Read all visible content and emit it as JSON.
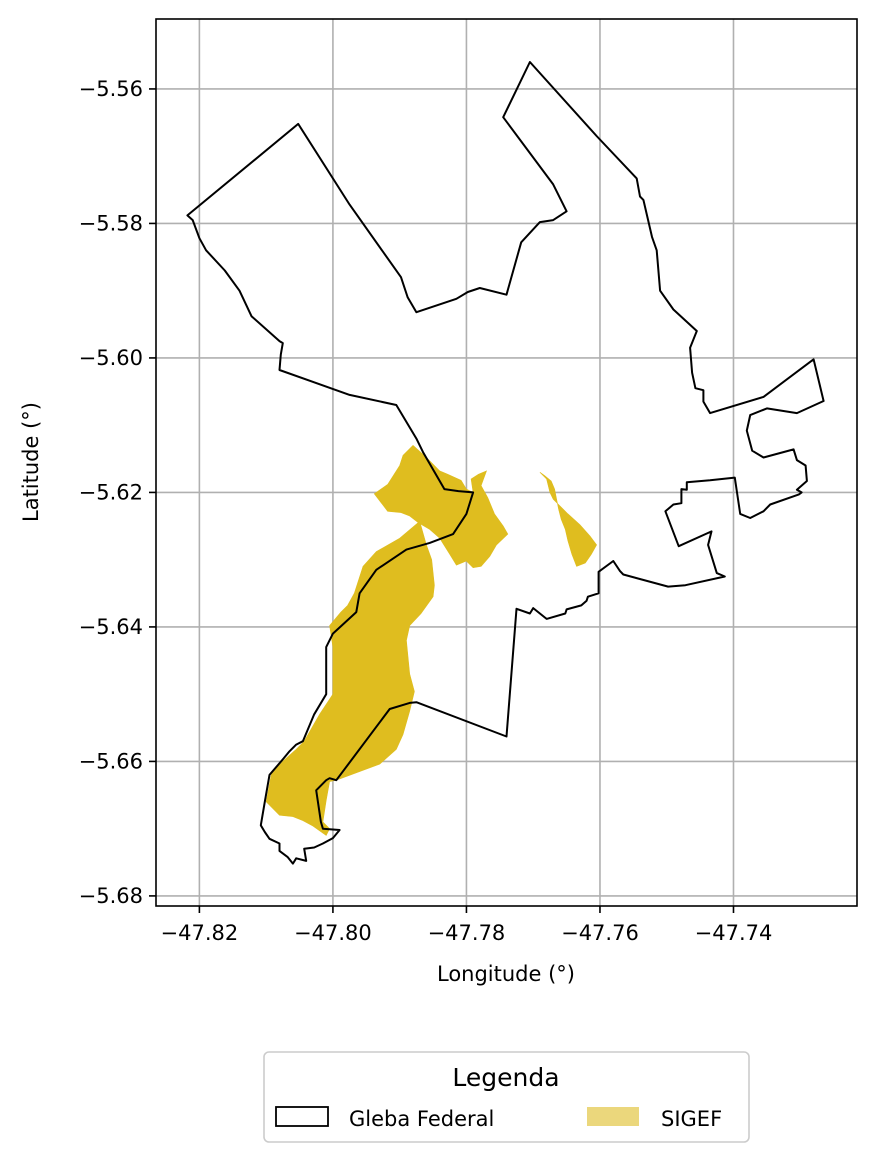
{
  "chart_data": {
    "type": "map",
    "xlabel": "Longitude (°)",
    "ylabel": "Latitude (°)",
    "xlim": [
      -47.8265,
      -47.7215
    ],
    "ylim": [
      -5.6815,
      -5.5496
    ],
    "x_ticks": [
      -47.82,
      -47.8,
      -47.78,
      -47.76,
      -47.74
    ],
    "x_tick_labels": [
      "−47.82",
      "−47.80",
      "−47.78",
      "−47.76",
      "−47.74"
    ],
    "y_ticks": [
      -5.56,
      -5.58,
      -5.6,
      -5.62,
      -5.64,
      -5.66,
      -5.68
    ],
    "y_tick_labels": [
      "−5.56",
      "−5.58",
      "−5.60",
      "−5.62",
      "−5.64",
      "−5.66",
      "−5.68"
    ],
    "grid": true,
    "legend": {
      "title": "Legenda",
      "placement": "bottom-center",
      "entries": [
        {
          "label": "Gleba Federal",
          "style": "outline",
          "color": "#000000"
        },
        {
          "label": "SIGEF",
          "style": "fill",
          "color": "#ebd77c"
        }
      ]
    },
    "layers": {
      "gleba_federal": {
        "edge_color": "#000000",
        "coordinates": [
          [
            -47.8218,
            -5.5788
          ],
          [
            -47.8052,
            -5.5652
          ],
          [
            -47.7975,
            -5.5772
          ],
          [
            -47.7898,
            -5.588
          ],
          [
            -47.7888,
            -5.591
          ],
          [
            -47.7875,
            -5.5932
          ],
          [
            -47.7815,
            -5.5912
          ],
          [
            -47.7798,
            -5.5902
          ],
          [
            -47.778,
            -5.5896
          ],
          [
            -47.774,
            -5.5906
          ],
          [
            -47.7718,
            -5.5828
          ],
          [
            -47.769,
            -5.5798
          ],
          [
            -47.767,
            -5.5795
          ],
          [
            -47.765,
            -5.5782
          ],
          [
            -47.767,
            -5.5742
          ],
          [
            -47.7745,
            -5.5642
          ],
          [
            -47.7705,
            -5.556
          ],
          [
            -47.7605,
            -5.567
          ],
          [
            -47.7545,
            -5.5733
          ],
          [
            -47.754,
            -5.576
          ],
          [
            -47.7535,
            -5.5765
          ],
          [
            -47.7522,
            -5.582
          ],
          [
            -47.7515,
            -5.584
          ],
          [
            -47.751,
            -5.59
          ],
          [
            -47.749,
            -5.5928
          ],
          [
            -47.7455,
            -5.596
          ],
          [
            -47.7465,
            -5.5985
          ],
          [
            -47.7462,
            -5.6022
          ],
          [
            -47.7457,
            -5.6045
          ],
          [
            -47.7445,
            -5.6048
          ],
          [
            -47.7445,
            -5.6065
          ],
          [
            -47.7435,
            -5.6082
          ],
          [
            -47.7355,
            -5.6058
          ],
          [
            -47.728,
            -5.6002
          ],
          [
            -47.7265,
            -5.6064
          ],
          [
            -47.7305,
            -5.6082
          ],
          [
            -47.735,
            -5.6075
          ],
          [
            -47.7375,
            -5.6085
          ],
          [
            -47.738,
            -5.6108
          ],
          [
            -47.7372,
            -5.6138
          ],
          [
            -47.7355,
            -5.6148
          ],
          [
            -47.731,
            -5.6136
          ],
          [
            -47.7305,
            -5.6152
          ],
          [
            -47.7292,
            -5.616
          ],
          [
            -47.729,
            -5.6183
          ],
          [
            -47.7305,
            -5.6196
          ],
          [
            -47.7298,
            -5.62
          ],
          [
            -47.7302,
            -5.6203
          ],
          [
            -47.7345,
            -5.6218
          ],
          [
            -47.7355,
            -5.6228
          ],
          [
            -47.7375,
            -5.6238
          ],
          [
            -47.739,
            -5.6232
          ],
          [
            -47.7398,
            -5.6178
          ],
          [
            -47.7435,
            -5.6182
          ],
          [
            -47.747,
            -5.6185
          ],
          [
            -47.747,
            -5.6196
          ],
          [
            -47.7478,
            -5.6195
          ],
          [
            -47.7478,
            -5.6216
          ],
          [
            -47.749,
            -5.6218
          ],
          [
            -47.7502,
            -5.6228
          ],
          [
            -47.7482,
            -5.628
          ],
          [
            -47.7433,
            -5.6258
          ],
          [
            -47.7438,
            -5.6278
          ],
          [
            -47.7425,
            -5.632
          ],
          [
            -47.7413,
            -5.6325
          ],
          [
            -47.7472,
            -5.6338
          ],
          [
            -47.7498,
            -5.634
          ],
          [
            -47.7565,
            -5.6322
          ],
          [
            -47.757,
            -5.6317
          ],
          [
            -47.758,
            -5.6302
          ],
          [
            -47.7602,
            -5.6318
          ],
          [
            -47.7602,
            -5.635
          ],
          [
            -47.7618,
            -5.6355
          ],
          [
            -47.762,
            -5.6361
          ],
          [
            -47.7628,
            -5.6368
          ],
          [
            -47.765,
            -5.6374
          ],
          [
            -47.7652,
            -5.638
          ],
          [
            -47.768,
            -5.6388
          ],
          [
            -47.77,
            -5.6372
          ],
          [
            -47.7705,
            -5.638
          ],
          [
            -47.7725,
            -5.6373
          ],
          [
            -47.774,
            -5.6563
          ],
          [
            -47.7875,
            -5.6512
          ],
          [
            -47.7885,
            -5.6513
          ],
          [
            -47.7915,
            -5.6522
          ],
          [
            -47.7995,
            -5.6628
          ],
          [
            -47.8005,
            -5.6625
          ],
          [
            -47.801,
            -5.6628
          ],
          [
            -47.8025,
            -5.6643
          ],
          [
            -47.8018,
            -5.669
          ],
          [
            -47.8015,
            -5.67
          ],
          [
            -47.799,
            -5.6702
          ],
          [
            -47.8,
            -5.6714
          ],
          [
            -47.8015,
            -5.6722
          ],
          [
            -47.8028,
            -5.6728
          ],
          [
            -47.8043,
            -5.673
          ],
          [
            -47.804,
            -5.6748
          ],
          [
            -47.8055,
            -5.6744
          ],
          [
            -47.806,
            -5.6752
          ],
          [
            -47.8068,
            -5.6742
          ],
          [
            -47.808,
            -5.6733
          ],
          [
            -47.808,
            -5.6722
          ],
          [
            -47.8095,
            -5.6715
          ],
          [
            -47.8102,
            -5.6705
          ],
          [
            -47.8108,
            -5.6695
          ],
          [
            -47.8102,
            -5.666
          ],
          [
            -47.8095,
            -5.662
          ],
          [
            -47.8075,
            -5.6597
          ],
          [
            -47.8065,
            -5.6585
          ],
          [
            -47.8055,
            -5.6575
          ],
          [
            -47.8045,
            -5.657
          ],
          [
            -47.8028,
            -5.653
          ],
          [
            -47.801,
            -5.65
          ],
          [
            -47.801,
            -5.643
          ],
          [
            -47.8,
            -5.641
          ],
          [
            -47.7965,
            -5.6378
          ],
          [
            -47.796,
            -5.635
          ],
          [
            -47.7935,
            -5.6315
          ],
          [
            -47.789,
            -5.6285
          ],
          [
            -47.7855,
            -5.6275
          ],
          [
            -47.782,
            -5.6262
          ],
          [
            -47.78,
            -5.6232
          ],
          [
            -47.779,
            -5.62
          ],
          [
            -47.7812,
            -5.6198
          ],
          [
            -47.7833,
            -5.6195
          ],
          [
            -47.7865,
            -5.614
          ],
          [
            -47.7875,
            -5.612
          ],
          [
            -47.7905,
            -5.607
          ],
          [
            -47.7975,
            -5.6055
          ],
          [
            -47.808,
            -5.6018
          ],
          [
            -47.8078,
            -5.5995
          ],
          [
            -47.8075,
            -5.5978
          ],
          [
            -47.808,
            -5.5975
          ],
          [
            -47.8122,
            -5.5938
          ],
          [
            -47.814,
            -5.59
          ],
          [
            -47.8162,
            -5.587
          ],
          [
            -47.819,
            -5.584
          ],
          [
            -47.82,
            -5.5822
          ],
          [
            -47.821,
            -5.5795
          ],
          [
            -47.8218,
            -5.5788
          ]
        ]
      },
      "sigef": {
        "fill_color": "#dfbd1f",
        "polygons": [
          [
            [
              -47.788,
              -5.613
            ],
            [
              -47.786,
              -5.6148
            ],
            [
              -47.784,
              -5.6168
            ],
            [
              -47.7828,
              -5.6173
            ],
            [
              -47.7808,
              -5.6182
            ],
            [
              -47.78,
              -5.6195
            ],
            [
              -47.779,
              -5.62
            ],
            [
              -47.7793,
              -5.618
            ],
            [
              -47.7782,
              -5.6173
            ],
            [
              -47.777,
              -5.6168
            ],
            [
              -47.7778,
              -5.619
            ],
            [
              -47.7768,
              -5.6208
            ],
            [
              -47.7758,
              -5.6232
            ],
            [
              -47.7745,
              -5.625
            ],
            [
              -47.7738,
              -5.6262
            ],
            [
              -47.7755,
              -5.6278
            ],
            [
              -47.7765,
              -5.6295
            ],
            [
              -47.7778,
              -5.631
            ],
            [
              -47.779,
              -5.6312
            ],
            [
              -47.78,
              -5.6302
            ],
            [
              -47.7815,
              -5.6308
            ],
            [
              -47.7825,
              -5.6292
            ],
            [
              -47.784,
              -5.6268
            ],
            [
              -47.7855,
              -5.6255
            ],
            [
              -47.7872,
              -5.6245
            ],
            [
              -47.7885,
              -5.6235
            ],
            [
              -47.7898,
              -5.623
            ],
            [
              -47.7918,
              -5.6228
            ],
            [
              -47.7938,
              -5.6202
            ],
            [
              -47.7918,
              -5.6188
            ],
            [
              -47.79,
              -5.616
            ],
            [
              -47.7895,
              -5.6145
            ],
            [
              -47.788,
              -5.613
            ]
          ],
          [
            [
              -47.769,
              -5.617
            ],
            [
              -47.768,
              -5.618
            ],
            [
              -47.7675,
              -5.62
            ],
            [
              -47.767,
              -5.621
            ],
            [
              -47.7648,
              -5.6232
            ],
            [
              -47.763,
              -5.6248
            ],
            [
              -47.7615,
              -5.6265
            ],
            [
              -47.7605,
              -5.6278
            ],
            [
              -47.7613,
              -5.6292
            ],
            [
              -47.7622,
              -5.6305
            ],
            [
              -47.7635,
              -5.631
            ],
            [
              -47.7642,
              -5.6292
            ],
            [
              -47.7648,
              -5.6272
            ],
            [
              -47.7652,
              -5.6255
            ],
            [
              -47.7658,
              -5.624
            ],
            [
              -47.7662,
              -5.6225
            ],
            [
              -47.7665,
              -5.621
            ],
            [
              -47.7668,
              -5.6195
            ],
            [
              -47.7673,
              -5.6183
            ],
            [
              -47.7683,
              -5.6175
            ],
            [
              -47.769,
              -5.617
            ]
          ],
          [
            [
              -47.787,
              -5.6243
            ],
            [
              -47.79,
              -5.6268
            ],
            [
              -47.7935,
              -5.6288
            ],
            [
              -47.7955,
              -5.631
            ],
            [
              -47.7968,
              -5.635
            ],
            [
              -47.7978,
              -5.6368
            ],
            [
              -47.7988,
              -5.6378
            ],
            [
              -47.8005,
              -5.6398
            ],
            [
              -47.8,
              -5.643
            ],
            [
              -47.8,
              -5.65
            ],
            [
              -47.802,
              -5.653
            ],
            [
              -47.8043,
              -5.657
            ],
            [
              -47.8055,
              -5.6582
            ],
            [
              -47.8075,
              -5.66
            ],
            [
              -47.8092,
              -5.6618
            ],
            [
              -47.81,
              -5.666
            ],
            [
              -47.808,
              -5.668
            ],
            [
              -47.806,
              -5.6682
            ],
            [
              -47.8045,
              -5.6688
            ],
            [
              -47.803,
              -5.6696
            ],
            [
              -47.802,
              -5.6703
            ],
            [
              -47.801,
              -5.671
            ],
            [
              -47.8005,
              -5.67
            ],
            [
              -47.8015,
              -5.669
            ],
            [
              -47.801,
              -5.6658
            ],
            [
              -47.8005,
              -5.663
            ],
            [
              -47.7995,
              -5.6628
            ],
            [
              -47.793,
              -5.6604
            ],
            [
              -47.7905,
              -5.6582
            ],
            [
              -47.7895,
              -5.656
            ],
            [
              -47.7885,
              -5.6525
            ],
            [
              -47.7878,
              -5.6496
            ],
            [
              -47.7885,
              -5.647
            ],
            [
              -47.789,
              -5.642
            ],
            [
              -47.7885,
              -5.6398
            ],
            [
              -47.7868,
              -5.638
            ],
            [
              -47.785,
              -5.6355
            ],
            [
              -47.7848,
              -5.6338
            ],
            [
              -47.7852,
              -5.63
            ],
            [
              -47.786,
              -5.6278
            ],
            [
              -47.787,
              -5.6243
            ]
          ]
        ]
      }
    }
  }
}
